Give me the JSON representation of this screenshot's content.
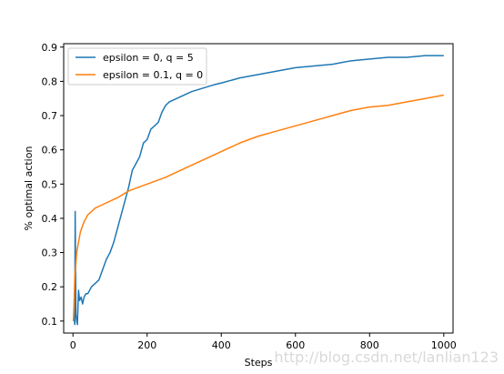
{
  "chart_data": {
    "type": "line",
    "title": "",
    "xlabel": "Steps",
    "ylabel": "% optimal action",
    "xlim": [
      -25,
      1025
    ],
    "ylim": [
      0.065,
      0.91
    ],
    "xticks": [
      0,
      200,
      400,
      600,
      800,
      1000
    ],
    "yticks": [
      0.1,
      0.2,
      0.3,
      0.4,
      0.5,
      0.6,
      0.7,
      0.8,
      0.9
    ],
    "grid": false,
    "legend_position": "top-left",
    "series": [
      {
        "name": "epsilon = 0, q = 5",
        "color": "#1f77b4",
        "x": [
          1,
          3,
          5,
          6,
          8,
          10,
          12,
          15,
          18,
          22,
          26,
          30,
          35,
          40,
          50,
          60,
          70,
          80,
          90,
          100,
          110,
          120,
          130,
          140,
          150,
          160,
          170,
          180,
          190,
          200,
          210,
          220,
          230,
          240,
          250,
          260,
          280,
          300,
          320,
          350,
          380,
          400,
          450,
          500,
          550,
          600,
          650,
          700,
          750,
          800,
          850,
          900,
          950,
          1000
        ],
        "y": [
          0.1,
          0.11,
          0.09,
          0.42,
          0.12,
          0.1,
          0.09,
          0.19,
          0.16,
          0.17,
          0.15,
          0.17,
          0.18,
          0.18,
          0.2,
          0.21,
          0.22,
          0.25,
          0.28,
          0.3,
          0.33,
          0.37,
          0.41,
          0.45,
          0.49,
          0.54,
          0.56,
          0.58,
          0.62,
          0.63,
          0.66,
          0.67,
          0.68,
          0.71,
          0.73,
          0.74,
          0.75,
          0.76,
          0.77,
          0.78,
          0.79,
          0.795,
          0.81,
          0.82,
          0.83,
          0.84,
          0.845,
          0.85,
          0.86,
          0.865,
          0.87,
          0.87,
          0.875,
          0.875
        ]
      },
      {
        "name": "epsilon = 0.1, q = 0",
        "color": "#ff7f0e",
        "x": [
          1,
          3,
          5,
          8,
          10,
          15,
          20,
          30,
          40,
          50,
          60,
          80,
          100,
          120,
          150,
          200,
          250,
          300,
          350,
          400,
          450,
          500,
          550,
          600,
          650,
          700,
          750,
          800,
          850,
          900,
          950,
          1000
        ],
        "y": [
          0.1,
          0.15,
          0.23,
          0.27,
          0.3,
          0.33,
          0.36,
          0.39,
          0.41,
          0.42,
          0.43,
          0.44,
          0.45,
          0.46,
          0.48,
          0.5,
          0.52,
          0.545,
          0.57,
          0.595,
          0.62,
          0.64,
          0.655,
          0.67,
          0.685,
          0.7,
          0.715,
          0.725,
          0.73,
          0.74,
          0.75,
          0.76
        ]
      }
    ]
  },
  "watermark": "http://blog.csdn.net/lanlian123"
}
